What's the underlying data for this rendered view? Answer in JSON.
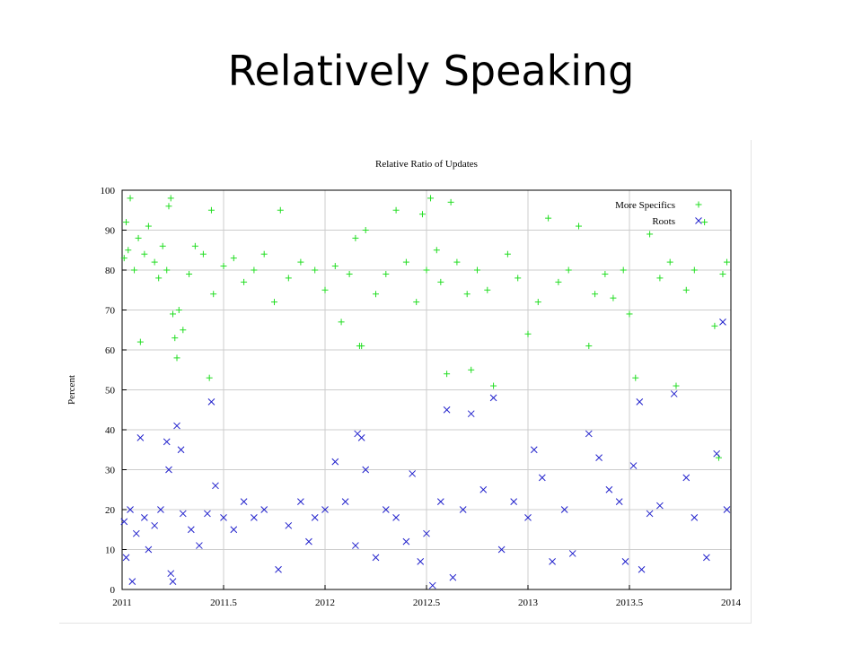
{
  "slide": {
    "title": "Relatively Speaking"
  },
  "chart_data": {
    "type": "scatter",
    "title": "Relative Ratio of Updates",
    "xlabel": "",
    "ylabel": "Percent",
    "xlim": [
      2011,
      2014
    ],
    "ylim": [
      0,
      100
    ],
    "x_ticks": [
      "2011",
      "2011.5",
      "2012",
      "2012.5",
      "2013",
      "2013.5",
      "2014"
    ],
    "y_ticks": [
      "0",
      "10",
      "20",
      "30",
      "40",
      "50",
      "60",
      "70",
      "80",
      "90",
      "100"
    ],
    "grid": true,
    "legend_position": "top-right",
    "series": [
      {
        "name": "More Specifics",
        "marker": "plus",
        "color": "#22dd22",
        "points": [
          [
            2011.01,
            83
          ],
          [
            2011.02,
            92
          ],
          [
            2011.03,
            85
          ],
          [
            2011.04,
            98
          ],
          [
            2011.06,
            80
          ],
          [
            2011.08,
            88
          ],
          [
            2011.09,
            62
          ],
          [
            2011.11,
            84
          ],
          [
            2011.13,
            91
          ],
          [
            2011.16,
            82
          ],
          [
            2011.18,
            78
          ],
          [
            2011.2,
            86
          ],
          [
            2011.22,
            80
          ],
          [
            2011.23,
            96
          ],
          [
            2011.24,
            98
          ],
          [
            2011.25,
            69
          ],
          [
            2011.26,
            63
          ],
          [
            2011.27,
            58
          ],
          [
            2011.28,
            70
          ],
          [
            2011.3,
            65
          ],
          [
            2011.33,
            79
          ],
          [
            2011.36,
            86
          ],
          [
            2011.4,
            84
          ],
          [
            2011.43,
            53
          ],
          [
            2011.44,
            95
          ],
          [
            2011.45,
            74
          ],
          [
            2011.5,
            81
          ],
          [
            2011.55,
            83
          ],
          [
            2011.6,
            77
          ],
          [
            2011.65,
            80
          ],
          [
            2011.7,
            84
          ],
          [
            2011.75,
            72
          ],
          [
            2011.78,
            95
          ],
          [
            2011.82,
            78
          ],
          [
            2011.88,
            82
          ],
          [
            2011.95,
            80
          ],
          [
            2012.0,
            75
          ],
          [
            2012.05,
            81
          ],
          [
            2012.08,
            67
          ],
          [
            2012.12,
            79
          ],
          [
            2012.15,
            88
          ],
          [
            2012.17,
            61
          ],
          [
            2012.18,
            61
          ],
          [
            2012.2,
            90
          ],
          [
            2012.25,
            74
          ],
          [
            2012.3,
            79
          ],
          [
            2012.35,
            95
          ],
          [
            2012.4,
            82
          ],
          [
            2012.45,
            72
          ],
          [
            2012.48,
            94
          ],
          [
            2012.5,
            80
          ],
          [
            2012.52,
            98
          ],
          [
            2012.55,
            85
          ],
          [
            2012.57,
            77
          ],
          [
            2012.6,
            54
          ],
          [
            2012.62,
            97
          ],
          [
            2012.65,
            82
          ],
          [
            2012.7,
            74
          ],
          [
            2012.72,
            55
          ],
          [
            2012.75,
            80
          ],
          [
            2012.8,
            75
          ],
          [
            2012.83,
            51
          ],
          [
            2012.9,
            84
          ],
          [
            2012.95,
            78
          ],
          [
            2013.0,
            64
          ],
          [
            2013.05,
            72
          ],
          [
            2013.1,
            93
          ],
          [
            2013.15,
            77
          ],
          [
            2013.2,
            80
          ],
          [
            2013.25,
            91
          ],
          [
            2013.3,
            61
          ],
          [
            2013.33,
            74
          ],
          [
            2013.38,
            79
          ],
          [
            2013.42,
            73
          ],
          [
            2013.47,
            80
          ],
          [
            2013.5,
            69
          ],
          [
            2013.53,
            53
          ],
          [
            2013.6,
            89
          ],
          [
            2013.65,
            78
          ],
          [
            2013.7,
            82
          ],
          [
            2013.73,
            51
          ],
          [
            2013.78,
            75
          ],
          [
            2013.82,
            80
          ],
          [
            2013.87,
            92
          ],
          [
            2013.92,
            66
          ],
          [
            2013.94,
            33
          ],
          [
            2013.96,
            79
          ],
          [
            2013.98,
            82
          ]
        ]
      },
      {
        "name": "Roots",
        "marker": "cross",
        "color": "#2222cc",
        "points": [
          [
            2011.01,
            17
          ],
          [
            2011.02,
            8
          ],
          [
            2011.04,
            20
          ],
          [
            2011.05,
            2
          ],
          [
            2011.07,
            14
          ],
          [
            2011.09,
            38
          ],
          [
            2011.11,
            18
          ],
          [
            2011.13,
            10
          ],
          [
            2011.16,
            16
          ],
          [
            2011.19,
            20
          ],
          [
            2011.22,
            37
          ],
          [
            2011.23,
            30
          ],
          [
            2011.24,
            4
          ],
          [
            2011.25,
            2
          ],
          [
            2011.27,
            41
          ],
          [
            2011.29,
            35
          ],
          [
            2011.3,
            19
          ],
          [
            2011.34,
            15
          ],
          [
            2011.38,
            11
          ],
          [
            2011.42,
            19
          ],
          [
            2011.44,
            47
          ],
          [
            2011.46,
            26
          ],
          [
            2011.5,
            18
          ],
          [
            2011.55,
            15
          ],
          [
            2011.6,
            22
          ],
          [
            2011.65,
            18
          ],
          [
            2011.7,
            20
          ],
          [
            2011.77,
            5
          ],
          [
            2011.82,
            16
          ],
          [
            2011.88,
            22
          ],
          [
            2011.92,
            12
          ],
          [
            2011.95,
            18
          ],
          [
            2012.0,
            20
          ],
          [
            2012.05,
            32
          ],
          [
            2012.1,
            22
          ],
          [
            2012.15,
            11
          ],
          [
            2012.16,
            39
          ],
          [
            2012.18,
            38
          ],
          [
            2012.2,
            30
          ],
          [
            2012.25,
            8
          ],
          [
            2012.3,
            20
          ],
          [
            2012.35,
            18
          ],
          [
            2012.4,
            12
          ],
          [
            2012.43,
            29
          ],
          [
            2012.47,
            7
          ],
          [
            2012.5,
            14
          ],
          [
            2012.53,
            1
          ],
          [
            2012.57,
            22
          ],
          [
            2012.6,
            45
          ],
          [
            2012.63,
            3
          ],
          [
            2012.68,
            20
          ],
          [
            2012.72,
            44
          ],
          [
            2012.78,
            25
          ],
          [
            2012.83,
            48
          ],
          [
            2012.87,
            10
          ],
          [
            2012.93,
            22
          ],
          [
            2013.0,
            18
          ],
          [
            2013.03,
            35
          ],
          [
            2013.07,
            28
          ],
          [
            2013.12,
            7
          ],
          [
            2013.18,
            20
          ],
          [
            2013.22,
            9
          ],
          [
            2013.3,
            39
          ],
          [
            2013.35,
            33
          ],
          [
            2013.4,
            25
          ],
          [
            2013.45,
            22
          ],
          [
            2013.48,
            7
          ],
          [
            2013.52,
            31
          ],
          [
            2013.55,
            47
          ],
          [
            2013.56,
            5
          ],
          [
            2013.6,
            19
          ],
          [
            2013.65,
            21
          ],
          [
            2013.72,
            49
          ],
          [
            2013.78,
            28
          ],
          [
            2013.82,
            18
          ],
          [
            2013.88,
            8
          ],
          [
            2013.93,
            34
          ],
          [
            2013.96,
            67
          ],
          [
            2013.98,
            20
          ]
        ]
      }
    ]
  }
}
